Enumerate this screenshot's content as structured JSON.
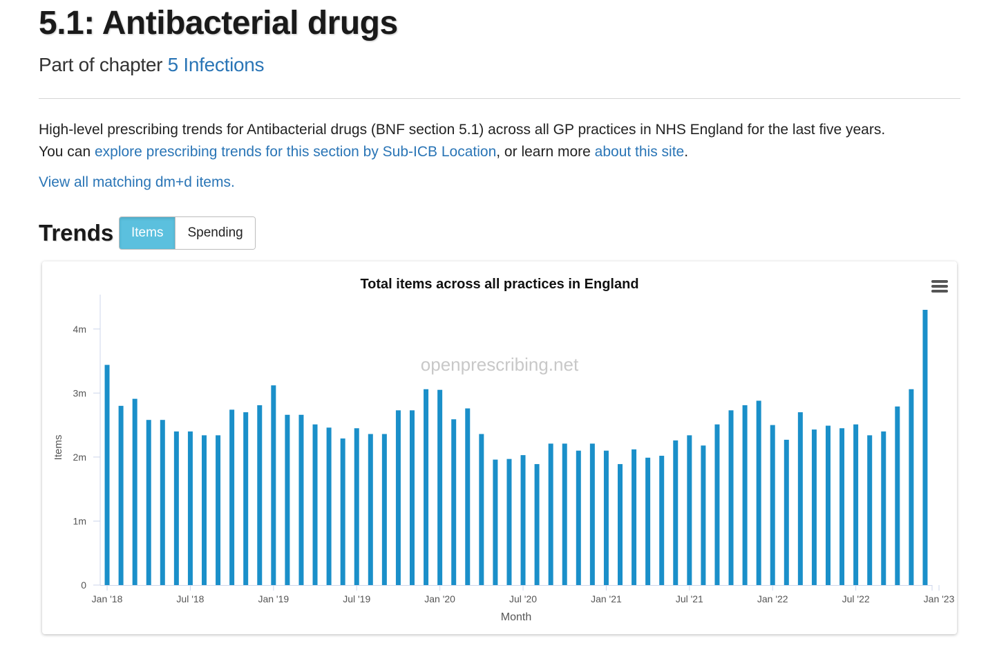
{
  "header": {
    "title": "5.1: Antibacterial drugs",
    "subtitle_prefix": "Part of chapter ",
    "chapter_link": "5 Infections"
  },
  "intro": {
    "line1": "High-level prescribing trends for Antibacterial drugs (BNF section 5.1) across all GP practices in NHS England for the last five years.",
    "line2_prefix": "You can ",
    "explore_link": "explore prescribing trends for this section by Sub-ICB Location",
    "line2_middle": ", or learn more ",
    "about_link": "about this site",
    "line2_suffix": "."
  },
  "dmd_link": "View all matching dm+d items.",
  "trends": {
    "heading": "Trends",
    "toggle": {
      "items_label": "Items",
      "spending_label": "Spending",
      "active": "Items"
    }
  },
  "chart_data": {
    "type": "bar",
    "title": "Total items across all practices in England",
    "xlabel": "Month",
    "ylabel": "Items",
    "watermark": "openprescribing.net",
    "menu_icon": "hamburger-menu-icon",
    "bar_color": "#1a8fc9",
    "ylim": [
      0,
      4300000
    ],
    "yticks": [
      {
        "value": 0,
        "label": "0"
      },
      {
        "value": 1000000,
        "label": "1m"
      },
      {
        "value": 2000000,
        "label": "2m"
      },
      {
        "value": 3000000,
        "label": "3m"
      },
      {
        "value": 4000000,
        "label": "4m"
      }
    ],
    "xticks": [
      {
        "index": 0,
        "label": "Jan '18"
      },
      {
        "index": 6,
        "label": "Jul '18"
      },
      {
        "index": 12,
        "label": "Jan '19"
      },
      {
        "index": 18,
        "label": "Jul '19"
      },
      {
        "index": 24,
        "label": "Jan '20"
      },
      {
        "index": 30,
        "label": "Jul '20"
      },
      {
        "index": 36,
        "label": "Jan '21"
      },
      {
        "index": 42,
        "label": "Jul '21"
      },
      {
        "index": 48,
        "label": "Jan '22"
      },
      {
        "index": 54,
        "label": "Jul '22"
      },
      {
        "index": 60,
        "label": "Jan '23"
      }
    ],
    "categories": [
      "2018-01",
      "2018-02",
      "2018-03",
      "2018-04",
      "2018-05",
      "2018-06",
      "2018-07",
      "2018-08",
      "2018-09",
      "2018-10",
      "2018-11",
      "2018-12",
      "2019-01",
      "2019-02",
      "2019-03",
      "2019-04",
      "2019-05",
      "2019-06",
      "2019-07",
      "2019-08",
      "2019-09",
      "2019-10",
      "2019-11",
      "2019-12",
      "2020-01",
      "2020-02",
      "2020-03",
      "2020-04",
      "2020-05",
      "2020-06",
      "2020-07",
      "2020-08",
      "2020-09",
      "2020-10",
      "2020-11",
      "2020-12",
      "2021-01",
      "2021-02",
      "2021-03",
      "2021-04",
      "2021-05",
      "2021-06",
      "2021-07",
      "2021-08",
      "2021-09",
      "2021-10",
      "2021-11",
      "2021-12",
      "2022-01",
      "2022-02",
      "2022-03",
      "2022-04",
      "2022-05",
      "2022-06",
      "2022-07",
      "2022-08",
      "2022-09",
      "2022-10",
      "2022-11",
      "2022-12"
    ],
    "values": [
      3440000,
      2800000,
      2910000,
      2580000,
      2580000,
      2400000,
      2400000,
      2340000,
      2340000,
      2740000,
      2700000,
      2810000,
      3120000,
      2660000,
      2660000,
      2510000,
      2460000,
      2290000,
      2450000,
      2360000,
      2360000,
      2730000,
      2730000,
      3060000,
      3050000,
      2590000,
      2760000,
      2360000,
      1960000,
      1970000,
      2030000,
      1890000,
      2210000,
      2210000,
      2100000,
      2210000,
      2100000,
      1890000,
      2120000,
      1990000,
      2020000,
      2260000,
      2340000,
      2180000,
      2510000,
      2730000,
      2810000,
      2880000,
      2500000,
      2270000,
      2700000,
      2430000,
      2490000,
      2450000,
      2510000,
      2340000,
      2400000,
      2790000,
      3060000,
      4300000
    ]
  }
}
